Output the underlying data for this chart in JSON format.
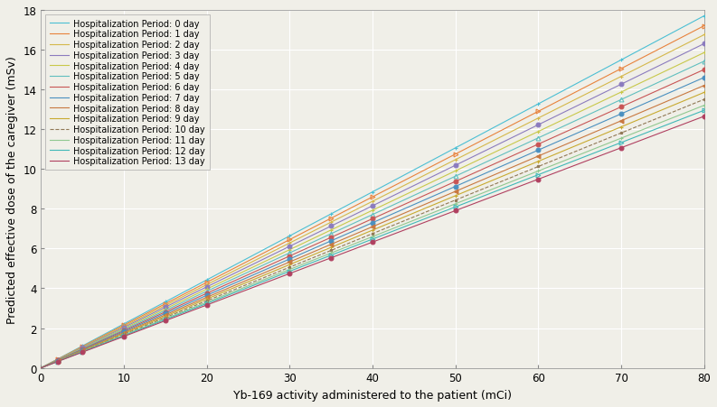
{
  "title": "",
  "xlabel": "Yb-169 activity administered to the patient (mCi)",
  "ylabel": "Predicted effective dose of the caregiver (mSv)",
  "xlim": [
    0,
    80
  ],
  "ylim": [
    0,
    18
  ],
  "xticks": [
    0,
    10,
    20,
    30,
    40,
    50,
    60,
    70,
    80
  ],
  "yticks": [
    0,
    2,
    4,
    6,
    8,
    10,
    12,
    14,
    16,
    18
  ],
  "marker_x_values": [
    2,
    5,
    10,
    15,
    20,
    30,
    35,
    40,
    50,
    60,
    70,
    80
  ],
  "days": [
    0,
    1,
    2,
    3,
    4,
    5,
    6,
    7,
    8,
    9,
    10,
    11,
    12,
    13
  ],
  "endpoint_values": [
    17.7,
    17.2,
    16.7,
    16.2,
    15.7,
    15.3,
    14.9,
    14.5,
    14.1,
    13.8,
    13.5,
    13.2,
    13.0,
    12.7
  ],
  "line_colors": [
    "#4CC9D4",
    "#E87A35",
    "#D4B84A",
    "#8B7BBE",
    "#C8C84A",
    "#6CBFBF",
    "#C85050",
    "#4A90C0",
    "#C87A35",
    "#C8AA35",
    "#8B6B4A",
    "#90C890",
    "#4AB8B8",
    "#C04060"
  ],
  "linestyles": [
    "-",
    "-",
    "-",
    "-",
    "-",
    "-",
    "-",
    "-",
    "-",
    "-",
    "--",
    "-",
    "-",
    "-"
  ],
  "marker_styles": [
    "+",
    ">",
    "+",
    "o",
    "+",
    "^",
    "o",
    "o",
    "<",
    "+",
    ".",
    "+",
    ">",
    "o"
  ],
  "background_color": "#f0efe8",
  "grid_color": "#ffffff",
  "legend_fontsize": 7.0,
  "axis_fontsize": 9,
  "tick_fontsize": 8.5,
  "figsize": [
    7.93,
    4.52
  ],
  "dpi": 100
}
